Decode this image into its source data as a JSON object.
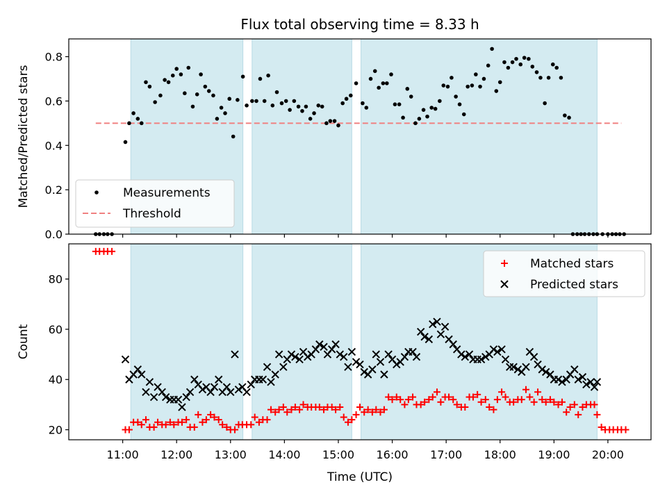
{
  "figure": {
    "title": "Flux total observing time = 8.33 h",
    "xlabel": "Time (UTC)"
  },
  "chart_data": [
    {
      "type": "scatter",
      "ylabel": "Matched/Predicted stars",
      "xlim": [
        10.0,
        20.8
      ],
      "ylim": [
        0.0,
        0.88
      ],
      "yticks": [
        0.0,
        0.2,
        0.4,
        0.6,
        0.8
      ],
      "ytick_labels": [
        "0.0",
        "0.2",
        "0.4",
        "0.6",
        "0.8"
      ],
      "observing_windows": [
        [
          11.15,
          13.23
        ],
        [
          13.4,
          15.25
        ],
        [
          15.42,
          19.8
        ]
      ],
      "window_color": "#d4ebf1",
      "legend": {
        "position": "lower-left",
        "entries": [
          "Measurements",
          "Threshold"
        ]
      },
      "threshold": {
        "value": 0.5,
        "x_range": [
          10.5,
          20.25
        ],
        "color": "#f08080"
      },
      "series": [
        {
          "name": "Measurements",
          "color": "#000000",
          "x": [
            10.5,
            10.57,
            10.65,
            10.72,
            10.8,
            11.05,
            11.12,
            11.2,
            11.28,
            11.35,
            11.43,
            11.5,
            11.6,
            11.7,
            11.78,
            11.85,
            11.93,
            12.0,
            12.08,
            12.15,
            12.22,
            12.3,
            12.38,
            12.45,
            12.53,
            12.6,
            12.68,
            12.75,
            12.83,
            12.9,
            12.98,
            13.05,
            13.13,
            13.23,
            13.3,
            13.4,
            13.48,
            13.55,
            13.63,
            13.7,
            13.78,
            13.86,
            13.95,
            14.03,
            14.1,
            14.18,
            14.26,
            14.33,
            14.4,
            14.48,
            14.55,
            14.63,
            14.7,
            14.78,
            14.85,
            14.93,
            15.0,
            15.08,
            15.15,
            15.23,
            15.33,
            15.45,
            15.52,
            15.6,
            15.68,
            15.75,
            15.83,
            15.9,
            15.98,
            16.05,
            16.13,
            16.2,
            16.28,
            16.35,
            16.43,
            16.5,
            16.58,
            16.65,
            16.73,
            16.8,
            16.88,
            16.95,
            17.03,
            17.1,
            17.18,
            17.25,
            17.33,
            17.4,
            17.48,
            17.55,
            17.63,
            17.7,
            17.78,
            17.85,
            17.93,
            18.0,
            18.08,
            18.15,
            18.23,
            18.3,
            18.38,
            18.45,
            18.53,
            18.6,
            18.68,
            18.75,
            18.83,
            18.9,
            18.98,
            19.05,
            19.13,
            19.2,
            19.28,
            19.35,
            19.43,
            19.5,
            19.57,
            19.65,
            19.73,
            19.8,
            19.9,
            20.0,
            20.08,
            20.15,
            20.22,
            20.3
          ],
          "values": [
            0.0,
            0.0,
            0.0,
            0.0,
            0.0,
            0.415,
            0.5,
            0.545,
            0.52,
            0.5,
            0.685,
            0.665,
            0.595,
            0.625,
            0.695,
            0.685,
            0.715,
            0.745,
            0.72,
            0.635,
            0.75,
            0.575,
            0.63,
            0.72,
            0.665,
            0.645,
            0.625,
            0.52,
            0.57,
            0.545,
            0.61,
            0.44,
            0.605,
            0.71,
            0.58,
            0.6,
            0.6,
            0.7,
            0.6,
            0.715,
            0.58,
            0.64,
            0.59,
            0.6,
            0.56,
            0.6,
            0.575,
            0.555,
            0.575,
            0.52,
            0.545,
            0.58,
            0.575,
            0.5,
            0.51,
            0.51,
            0.49,
            0.59,
            0.61,
            0.625,
            0.68,
            0.59,
            0.57,
            0.7,
            0.735,
            0.66,
            0.68,
            0.68,
            0.72,
            0.585,
            0.585,
            0.525,
            0.655,
            0.62,
            0.5,
            0.52,
            0.56,
            0.53,
            0.57,
            0.565,
            0.6,
            0.67,
            0.665,
            0.705,
            0.62,
            0.585,
            0.54,
            0.665,
            0.67,
            0.72,
            0.665,
            0.7,
            0.76,
            0.835,
            0.645,
            0.685,
            0.775,
            0.75,
            0.775,
            0.79,
            0.765,
            0.795,
            0.79,
            0.755,
            0.73,
            0.705,
            0.59,
            0.705,
            0.765,
            0.75,
            0.705,
            0.535,
            0.525,
            0.0,
            0.0,
            0.0,
            0.0,
            0.0,
            0.0,
            0.0,
            0.0,
            0.0,
            0.0,
            0.0,
            0.0,
            0.0
          ]
        }
      ]
    },
    {
      "type": "scatter",
      "ylabel": "Count",
      "xlim": [
        10.0,
        20.8
      ],
      "ylim": [
        16,
        94
      ],
      "yticks": [
        20,
        40,
        60,
        80
      ],
      "ytick_labels": [
        "20",
        "40",
        "60",
        "80"
      ],
      "xticks": [
        11,
        12,
        13,
        14,
        15,
        16,
        17,
        18,
        19,
        20
      ],
      "xtick_labels": [
        "11:00",
        "12:00",
        "13:00",
        "14:00",
        "15:00",
        "16:00",
        "17:00",
        "18:00",
        "19:00",
        "20:00"
      ],
      "observing_windows": [
        [
          11.15,
          13.23
        ],
        [
          13.4,
          15.25
        ],
        [
          15.42,
          19.8
        ]
      ],
      "window_color": "#d4ebf1",
      "legend": {
        "position": "top-right",
        "entries": [
          "Matched stars",
          "Predicted stars"
        ]
      },
      "series": [
        {
          "name": "Matched stars",
          "marker": "plus",
          "color": "#ff0000",
          "x": [
            10.5,
            10.57,
            10.65,
            10.72,
            10.8,
            11.05,
            11.12,
            11.2,
            11.28,
            11.35,
            11.43,
            11.5,
            11.58,
            11.65,
            11.73,
            11.8,
            11.88,
            11.95,
            12.03,
            12.1,
            12.18,
            12.25,
            12.33,
            12.4,
            12.48,
            12.55,
            12.63,
            12.7,
            12.78,
            12.85,
            12.93,
            13.0,
            13.08,
            13.15,
            13.22,
            13.3,
            13.38,
            13.45,
            13.53,
            13.6,
            13.68,
            13.75,
            13.83,
            13.9,
            13.98,
            14.05,
            14.13,
            14.2,
            14.28,
            14.35,
            14.43,
            14.5,
            14.58,
            14.65,
            14.73,
            14.8,
            14.88,
            14.95,
            15.03,
            15.1,
            15.18,
            15.25,
            15.33,
            15.4,
            15.48,
            15.55,
            15.63,
            15.7,
            15.78,
            15.85,
            15.93,
            16.0,
            16.08,
            16.15,
            16.23,
            16.3,
            16.38,
            16.45,
            16.53,
            16.6,
            16.68,
            16.75,
            16.83,
            16.9,
            16.98,
            17.05,
            17.13,
            17.2,
            17.28,
            17.35,
            17.43,
            17.5,
            17.58,
            17.65,
            17.73,
            17.8,
            17.88,
            17.95,
            18.03,
            18.1,
            18.18,
            18.25,
            18.33,
            18.4,
            18.48,
            18.55,
            18.63,
            18.7,
            18.78,
            18.85,
            18.93,
            19.0,
            19.08,
            19.15,
            19.23,
            19.3,
            19.38,
            19.45,
            19.53,
            19.6,
            19.68,
            19.75,
            19.8,
            19.88,
            19.95,
            20.03,
            20.1,
            20.18,
            20.25,
            20.33
          ],
          "values": [
            91,
            91,
            91,
            91,
            91,
            20,
            20,
            23,
            23,
            22,
            24,
            21,
            21,
            23,
            22,
            22,
            23,
            22,
            23,
            23,
            24,
            21,
            21,
            26,
            23,
            24,
            26,
            25,
            24,
            22,
            21,
            20,
            20,
            22,
            22,
            22,
            22,
            25,
            23,
            24,
            24,
            28,
            27,
            28,
            29,
            27,
            28,
            29,
            28,
            30,
            29,
            29,
            29,
            29,
            28,
            29,
            29,
            28,
            29,
            25,
            23,
            24,
            26,
            29,
            27,
            28,
            27,
            28,
            27,
            28,
            33,
            32,
            33,
            32,
            30,
            32,
            33,
            30,
            30,
            31,
            32,
            33,
            35,
            31,
            33,
            33,
            32,
            30,
            29,
            29,
            33,
            33,
            34,
            31,
            32,
            29,
            28,
            32,
            35,
            33,
            31,
            31,
            32,
            32,
            36,
            33,
            31,
            35,
            32,
            31,
            32,
            31,
            30,
            31,
            27,
            29,
            30,
            26,
            29,
            30,
            30,
            30,
            26,
            21,
            20,
            20,
            20,
            20,
            20,
            20
          ]
        },
        {
          "name": "Predicted stars",
          "marker": "x",
          "color": "#000000",
          "x": [
            11.05,
            11.12,
            11.2,
            11.28,
            11.35,
            11.43,
            11.5,
            11.58,
            11.65,
            11.73,
            11.8,
            11.88,
            11.95,
            12.03,
            12.1,
            12.18,
            12.25,
            12.33,
            12.4,
            12.48,
            12.55,
            12.63,
            12.7,
            12.78,
            12.85,
            12.93,
            13.0,
            13.08,
            13.15,
            13.22,
            13.3,
            13.38,
            13.45,
            13.53,
            13.6,
            13.68,
            13.75,
            13.83,
            13.9,
            13.98,
            14.05,
            14.13,
            14.2,
            14.28,
            14.35,
            14.43,
            14.5,
            14.58,
            14.65,
            14.73,
            14.8,
            14.88,
            14.95,
            15.03,
            15.1,
            15.18,
            15.25,
            15.33,
            15.4,
            15.48,
            15.55,
            15.63,
            15.7,
            15.78,
            15.85,
            15.93,
            16.0,
            16.08,
            16.15,
            16.23,
            16.3,
            16.38,
            16.45,
            16.53,
            16.6,
            16.68,
            16.75,
            16.83,
            16.9,
            16.98,
            17.05,
            17.13,
            17.2,
            17.28,
            17.35,
            17.43,
            17.5,
            17.58,
            17.65,
            17.73,
            17.8,
            17.88,
            17.95,
            18.03,
            18.1,
            18.18,
            18.25,
            18.33,
            18.4,
            18.48,
            18.55,
            18.63,
            18.7,
            18.78,
            18.85,
            18.93,
            19.0,
            19.08,
            19.15,
            19.23,
            19.3,
            19.38,
            19.45,
            19.53,
            19.6,
            19.68,
            19.75,
            19.8
          ],
          "values": [
            48,
            40,
            42,
            44,
            42,
            35,
            39,
            33,
            37,
            35,
            33,
            32,
            32,
            32,
            29,
            33,
            35,
            40,
            38,
            36,
            37,
            35,
            37,
            40,
            35,
            37,
            35,
            50,
            36,
            37,
            35,
            38,
            40,
            40,
            40,
            45,
            39,
            42,
            50,
            45,
            48,
            50,
            49,
            48,
            51,
            49,
            50,
            52,
            54,
            53,
            50,
            52,
            54,
            50,
            49,
            45,
            51,
            47,
            46,
            43,
            42,
            44,
            50,
            47,
            42,
            50,
            48,
            46,
            47,
            49,
            51,
            51,
            49,
            59,
            57,
            56,
            62,
            63,
            58,
            61,
            56,
            54,
            52,
            50,
            49,
            50,
            48,
            48,
            48,
            49,
            50,
            52,
            51,
            52,
            48,
            45,
            45,
            44,
            43,
            45,
            51,
            49,
            46,
            44,
            43,
            42,
            40,
            40,
            39,
            40,
            42,
            44,
            40,
            41,
            38,
            39,
            37,
            39
          ]
        }
      ]
    }
  ]
}
